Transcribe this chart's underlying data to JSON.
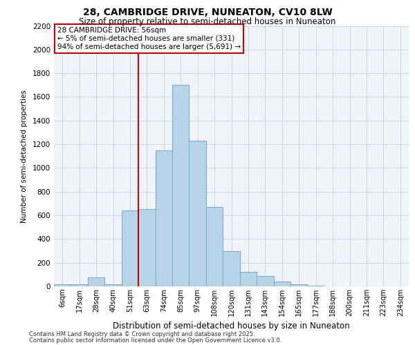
{
  "title1": "28, CAMBRIDGE DRIVE, NUNEATON, CV10 8LW",
  "title2": "Size of property relative to semi-detached houses in Nuneaton",
  "xlabel": "Distribution of semi-detached houses by size in Nuneaton",
  "ylabel": "Number of semi-detached properties",
  "categories": [
    "6sqm",
    "17sqm",
    "28sqm",
    "40sqm",
    "51sqm",
    "63sqm",
    "74sqm",
    "85sqm",
    "97sqm",
    "108sqm",
    "120sqm",
    "131sqm",
    "143sqm",
    "154sqm",
    "165sqm",
    "177sqm",
    "188sqm",
    "200sqm",
    "211sqm",
    "223sqm",
    "234sqm"
  ],
  "values": [
    20,
    20,
    75,
    20,
    640,
    650,
    1150,
    1700,
    1230,
    670,
    295,
    125,
    90,
    40,
    20,
    5,
    0,
    0,
    0,
    0,
    0
  ],
  "bar_color": "#b8d4e8",
  "bar_edge_color": "#7aaed4",
  "annotation_text": "28 CAMBRIDGE DRIVE: 56sqm\n← 5% of semi-detached houses are smaller (331)\n94% of semi-detached houses are larger (5,691) →",
  "annotation_box_color": "#ffffff",
  "annotation_box_edge_color": "#cc0000",
  "vline_color": "#cc0000",
  "vline_x": 4.5,
  "ylim_max": 2200,
  "yticks": [
    0,
    200,
    400,
    600,
    800,
    1000,
    1200,
    1400,
    1600,
    1800,
    2000,
    2200
  ],
  "grid_color": "#c8d8e8",
  "bg_color": "#ffffff",
  "plot_bg_color": "#f0f4f8",
  "footnote1": "Contains HM Land Registry data © Crown copyright and database right 2025.",
  "footnote2": "Contains public sector information licensed under the Open Government Licence v3.0."
}
